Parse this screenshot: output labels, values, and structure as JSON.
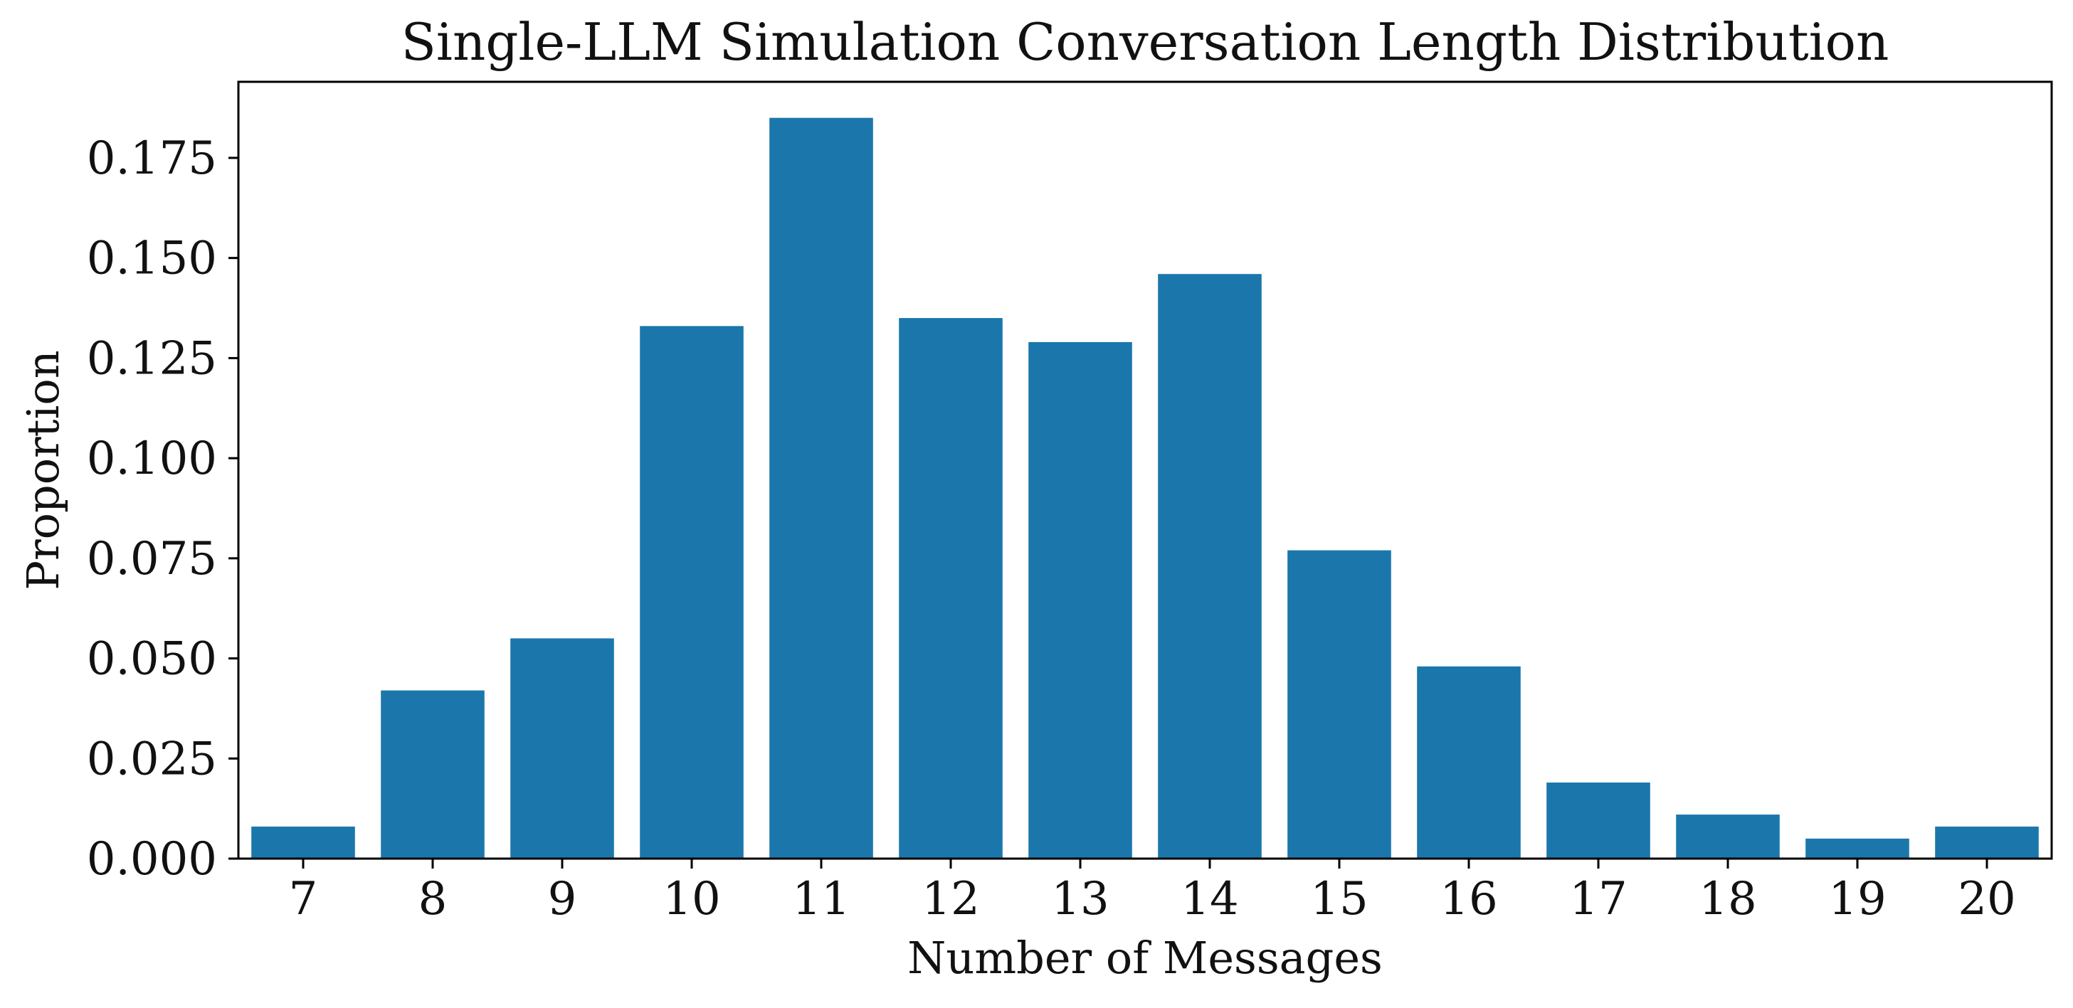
{
  "chart_data": {
    "type": "bar",
    "title": "Single-LLM Simulation Conversation Length Distribution",
    "xlabel": "Number of Messages",
    "ylabel": "Proportion",
    "categories": [
      "7",
      "8",
      "9",
      "10",
      "11",
      "12",
      "13",
      "14",
      "15",
      "16",
      "17",
      "18",
      "19",
      "20"
    ],
    "values": [
      0.008,
      0.042,
      0.055,
      0.133,
      0.185,
      0.135,
      0.129,
      0.146,
      0.077,
      0.048,
      0.019,
      0.011,
      0.005,
      0.008
    ],
    "ylim": [
      0,
      0.194
    ],
    "yticks": [
      0.0,
      0.025,
      0.05,
      0.075,
      0.1,
      0.125,
      0.15,
      0.175
    ],
    "ytick_labels": [
      "0.000",
      "0.025",
      "0.050",
      "0.075",
      "0.100",
      "0.125",
      "0.150",
      "0.175"
    ],
    "grid": false,
    "bar_color": "#1b77ab",
    "axis_color": "#000000"
  }
}
